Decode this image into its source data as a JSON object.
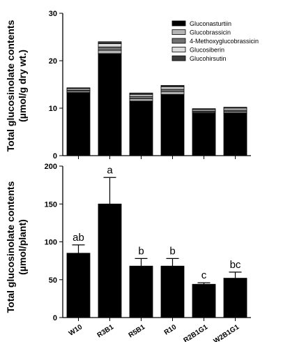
{
  "chart_data": [
    {
      "type": "bar",
      "stacked": true,
      "categories": [
        "W10",
        "R3B1",
        "R5B1",
        "R10",
        "R2B1G1",
        "W2B1G1"
      ],
      "ylabel": "Total glucosinolate contents",
      "ylabel_unit": "(µmol/g dry wt.)",
      "ylim": [
        0,
        30
      ],
      "yticks": [
        "0",
        "10",
        "20",
        "30"
      ],
      "legend_position": "top-right",
      "series": [
        {
          "name": "Gluconasturtiin",
          "color": "#000000",
          "values": [
            13.3,
            21.5,
            11.5,
            12.9,
            9.0,
            9.0
          ]
        },
        {
          "name": "Glucobrassicin",
          "color": "#b4b4b4",
          "values": [
            0.3,
            0.7,
            0.5,
            0.6,
            0.2,
            0.3
          ]
        },
        {
          "name": "4-Methoxyglucobrassicin",
          "color": "#707070",
          "values": [
            0.2,
            0.7,
            0.5,
            0.5,
            0.2,
            0.3
          ]
        },
        {
          "name": "Glucosiberin",
          "color": "#dcdcdc",
          "values": [
            0.3,
            0.7,
            0.4,
            0.5,
            0.3,
            0.4
          ]
        },
        {
          "name": "Glucohirsutin",
          "color": "#3c3c3c",
          "values": [
            0.2,
            0.4,
            0.3,
            0.3,
            0.2,
            0.2
          ]
        }
      ]
    },
    {
      "type": "bar",
      "categories": [
        "W10",
        "R3B1",
        "R5B1",
        "R10",
        "R2B1G1",
        "W2B1G1"
      ],
      "ylabel": "Total glucosinolate contents",
      "ylabel_unit": "(µmol/plant)",
      "ylim": [
        0,
        200
      ],
      "yticks": [
        "0",
        "50",
        "100",
        "150",
        "200"
      ],
      "values": [
        85,
        150,
        68,
        68,
        44,
        52
      ],
      "errors": [
        11,
        35,
        10,
        10,
        2,
        8
      ],
      "letters": [
        "ab",
        "a",
        "b",
        "b",
        "c",
        "bc"
      ]
    }
  ]
}
